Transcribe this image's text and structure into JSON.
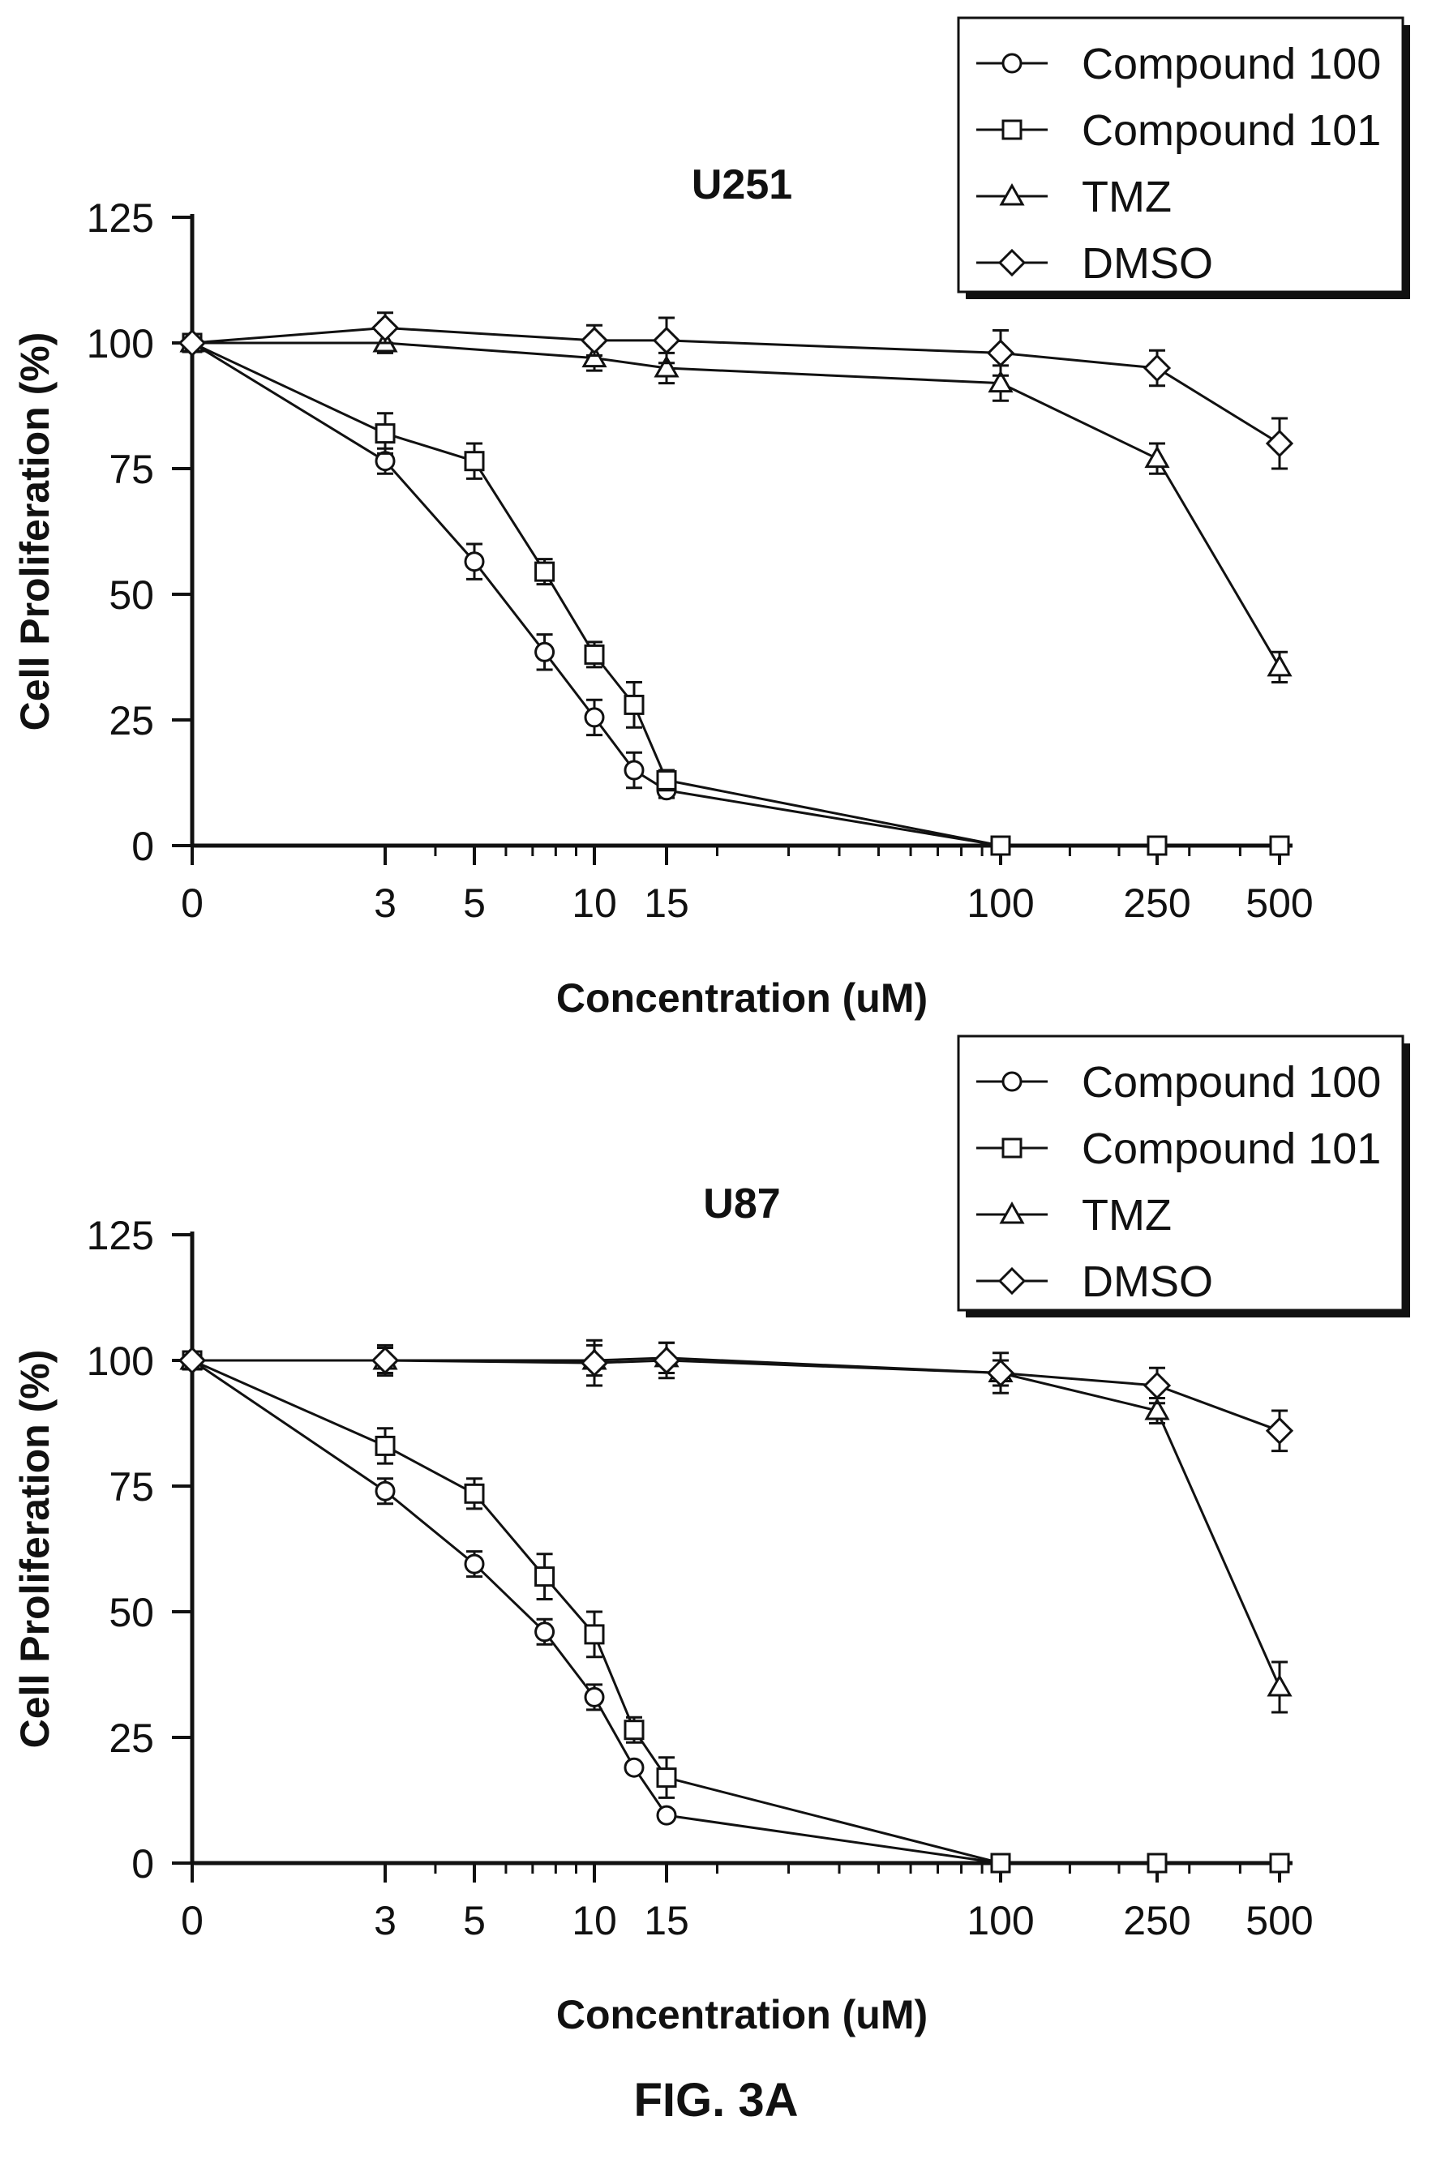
{
  "figure_label": "FIG. 3A",
  "colors": {
    "ink": "#111111",
    "paper": "#ffffff"
  },
  "chart_data": [
    {
      "type": "line",
      "title": "U251",
      "xlabel": "Concentration (uM)",
      "ylabel": "Cell Proliferation (%)",
      "ylim": [
        0,
        125
      ],
      "yticks": [
        0,
        25,
        50,
        75,
        100,
        125
      ],
      "xscale": "log-like (0 shown at left)",
      "xticks": [
        "0",
        "3",
        "5",
        "10",
        "15",
        "100",
        "250",
        "500"
      ],
      "grid": false,
      "legend_placement": "top-right",
      "series": [
        {
          "name": "Compound 100",
          "marker": "circle",
          "x": [
            0,
            3,
            5,
            7.5,
            10,
            12.5,
            15,
            100,
            250,
            500
          ],
          "y": [
            100,
            76.5,
            56.5,
            38.5,
            25.5,
            15,
            11,
            0,
            0,
            0
          ],
          "err": [
            0,
            2.5,
            3.5,
            3.5,
            3.5,
            3.5,
            1.5,
            0,
            0,
            0
          ]
        },
        {
          "name": "Compound 101",
          "marker": "square",
          "x": [
            0,
            3,
            5,
            7.5,
            10,
            12.5,
            15,
            100,
            250,
            500
          ],
          "y": [
            100,
            82,
            76.5,
            54.5,
            38,
            28,
            13,
            0,
            0,
            0
          ],
          "err": [
            0,
            4,
            3.5,
            2.5,
            2.5,
            4.5,
            2,
            0,
            0,
            0
          ]
        },
        {
          "name": "TMZ",
          "marker": "triangle",
          "x": [
            0,
            3,
            10,
            15,
            100,
            250,
            500
          ],
          "y": [
            100,
            100,
            97,
            95,
            92,
            77,
            35.5
          ],
          "err": [
            0,
            2,
            2.5,
            3,
            3.5,
            3,
            3
          ]
        },
        {
          "name": "DMSO",
          "marker": "diamond",
          "x": [
            0,
            3,
            10,
            15,
            100,
            250,
            500
          ],
          "y": [
            100,
            103,
            100.5,
            100.5,
            98,
            95,
            80
          ],
          "err": [
            0,
            3,
            3,
            4.5,
            4.5,
            3.5,
            5
          ]
        }
      ]
    },
    {
      "type": "line",
      "title": "U87",
      "xlabel": "Concentration (uM)",
      "ylabel": "Cell Proliferation (%)",
      "ylim": [
        0,
        125
      ],
      "yticks": [
        0,
        25,
        50,
        75,
        100,
        125
      ],
      "xscale": "log-like (0 shown at left)",
      "xticks": [
        "0",
        "3",
        "5",
        "10",
        "15",
        "100",
        "250",
        "500"
      ],
      "grid": false,
      "legend_placement": "top-right",
      "series": [
        {
          "name": "Compound 100",
          "marker": "circle",
          "x": [
            0,
            3,
            5,
            7.5,
            10,
            12.5,
            15,
            100,
            250,
            500
          ],
          "y": [
            100,
            74,
            59.5,
            46,
            33,
            19,
            9.5,
            0,
            0,
            0
          ],
          "err": [
            0,
            2.5,
            2.5,
            2.5,
            2.5,
            1,
            1,
            0,
            0,
            0
          ]
        },
        {
          "name": "Compound 101",
          "marker": "square",
          "x": [
            0,
            3,
            5,
            7.5,
            10,
            12.5,
            15,
            100,
            250,
            500
          ],
          "y": [
            100,
            83,
            73.5,
            57,
            45.5,
            26.5,
            17,
            0,
            0,
            0
          ],
          "err": [
            0,
            3.5,
            3,
            4.5,
            4.5,
            2.5,
            4,
            0,
            0,
            0
          ]
        },
        {
          "name": "TMZ",
          "marker": "triangle",
          "x": [
            0,
            3,
            10,
            15,
            100,
            250,
            500
          ],
          "y": [
            100,
            100,
            100,
            100.5,
            97.5,
            90,
            35
          ],
          "err": [
            0,
            3,
            3,
            3,
            4,
            2.5,
            5
          ]
        },
        {
          "name": "DMSO",
          "marker": "diamond",
          "x": [
            0,
            3,
            10,
            15,
            100,
            250,
            500
          ],
          "y": [
            100,
            100,
            99.5,
            100,
            97.5,
            95,
            86
          ],
          "err": [
            0,
            2.5,
            4.5,
            3.5,
            2.5,
            3.5,
            4
          ]
        }
      ]
    }
  ]
}
